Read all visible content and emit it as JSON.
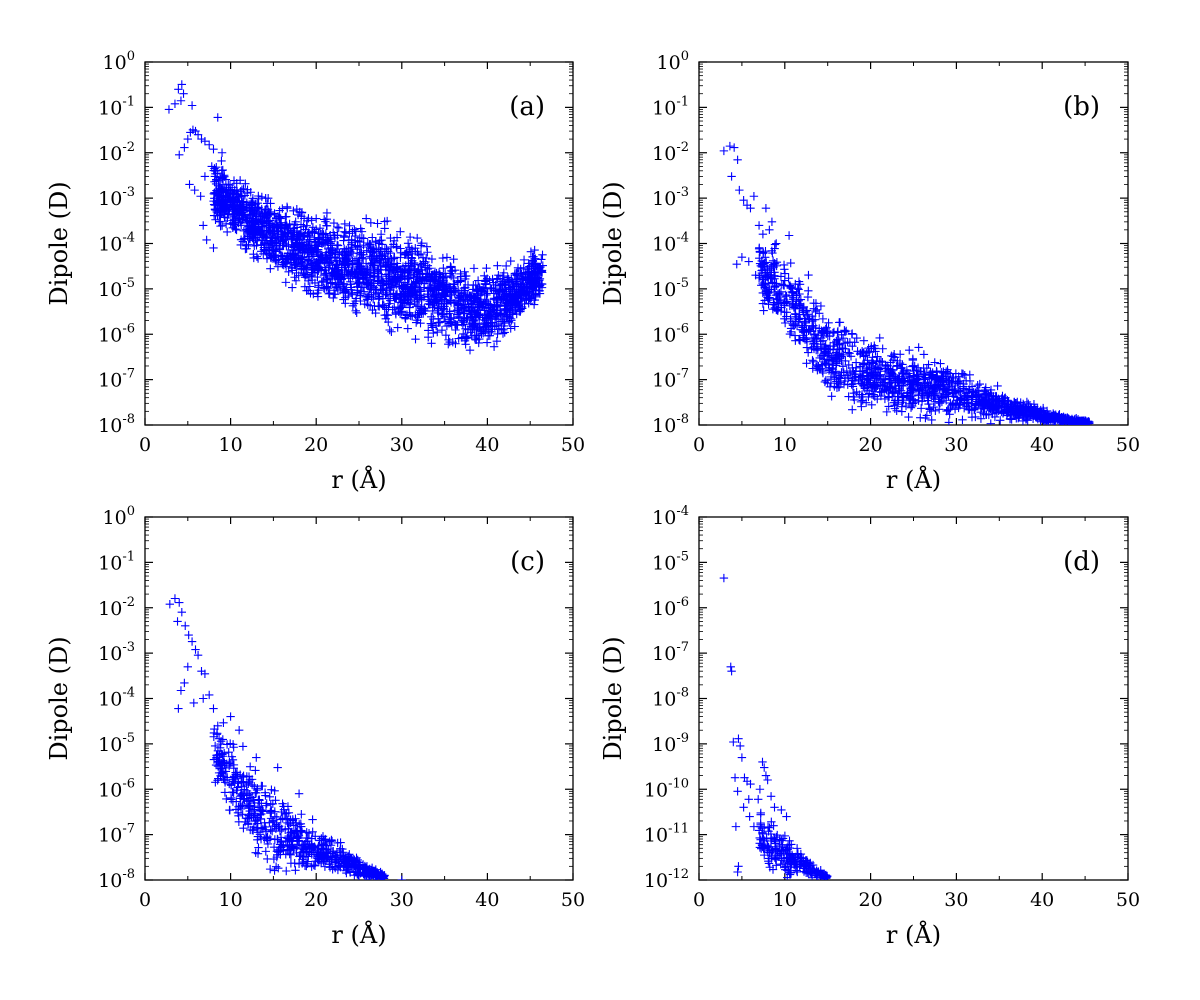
{
  "figure": {
    "background": "#ffffff",
    "marker_color": "#0000ff",
    "marker": "plus"
  },
  "chart_data": [
    {
      "type": "scatter",
      "panel_label": "(a)",
      "xlabel": "r (Å)",
      "ylabel": "Dipole (D)",
      "xlim": [
        0,
        50
      ],
      "ylim_exponent": [
        -8,
        0
      ],
      "yscale": "log",
      "xticks": [
        "0",
        "10",
        "20",
        "30",
        "40",
        "50"
      ],
      "yticks": [
        {
          "base": "10",
          "exp": "-8"
        },
        {
          "base": "10",
          "exp": "-7"
        },
        {
          "base": "10",
          "exp": "-6"
        },
        {
          "base": "10",
          "exp": "-5"
        },
        {
          "base": "10",
          "exp": "-4"
        },
        {
          "base": "10",
          "exp": "-3"
        },
        {
          "base": "10",
          "exp": "-2"
        },
        {
          "base": "10",
          "exp": "-1"
        },
        {
          "base": "10",
          "exp": "0"
        }
      ],
      "grid": false,
      "series": [
        {
          "marker": "+",
          "color": "#0000ff",
          "points": [
            [
              2.8,
              0.09
            ],
            [
              3.5,
              0.12
            ],
            [
              3.9,
              0.25
            ],
            [
              4.3,
              0.32
            ],
            [
              4.5,
              0.2
            ],
            [
              4.2,
              0.14
            ],
            [
              5.5,
              0.11
            ],
            [
              8.5,
              0.06
            ],
            [
              4.0,
              0.009
            ],
            [
              4.6,
              0.013
            ],
            [
              5.0,
              0.02
            ],
            [
              5.3,
              0.028
            ],
            [
              5.6,
              0.032
            ],
            [
              5.9,
              0.03
            ],
            [
              6.2,
              0.025
            ],
            [
              6.6,
              0.02
            ],
            [
              7.0,
              0.018
            ],
            [
              7.5,
              0.015
            ],
            [
              8.0,
              0.012
            ],
            [
              9.0,
              0.01
            ],
            [
              5.2,
              0.002
            ],
            [
              5.8,
              0.0015
            ],
            [
              6.5,
              0.0011
            ],
            [
              7.0,
              0.003
            ],
            [
              7.8,
              0.005
            ],
            [
              8.6,
              0.0009
            ],
            [
              6.8,
              0.00025
            ],
            [
              7.2,
              0.00012
            ],
            [
              8.0,
              8e-05
            ],
            [
              8.8,
              0.0003
            ],
            [
              9.6,
              0.00018
            ],
            [
              10.5,
              0.0006
            ]
          ]
        }
      ],
      "regions": [
        {
          "note": "dense point cloud, log10 lower/upper bounds vs r",
          "r": [
            8,
            10,
            12,
            15,
            18,
            20,
            22,
            25,
            28,
            30,
            33,
            35,
            37,
            39,
            41,
            43,
            45,
            46.5
          ],
          "log_lo": [
            -3.8,
            -4.1,
            -4.4,
            -4.9,
            -5.3,
            -5.5,
            -5.7,
            -5.9,
            -6.1,
            -6.2,
            -6.35,
            -6.5,
            -6.6,
            -6.55,
            -6.4,
            -6.1,
            -5.7,
            -5.3
          ],
          "log_hi": [
            -1.8,
            -2.2,
            -2.5,
            -2.8,
            -3.0,
            -3.1,
            -3.2,
            -3.25,
            -3.3,
            -3.45,
            -3.7,
            -3.95,
            -4.2,
            -4.3,
            -4.3,
            -4.2,
            -4.0,
            -4.0
          ],
          "count": 2400
        }
      ]
    },
    {
      "type": "scatter",
      "panel_label": "(b)",
      "xlabel": "r (Å)",
      "ylabel": "Dipole (D)",
      "xlim": [
        0,
        50
      ],
      "ylim_exponent": [
        -8,
        0
      ],
      "yscale": "log",
      "xticks": [
        "0",
        "10",
        "20",
        "30",
        "40",
        "50"
      ],
      "yticks": [
        {
          "base": "10",
          "exp": "-8"
        },
        {
          "base": "10",
          "exp": "-7"
        },
        {
          "base": "10",
          "exp": "-6"
        },
        {
          "base": "10",
          "exp": "-5"
        },
        {
          "base": "10",
          "exp": "-4"
        },
        {
          "base": "10",
          "exp": "-3"
        },
        {
          "base": "10",
          "exp": "-2"
        },
        {
          "base": "10",
          "exp": "-1"
        },
        {
          "base": "10",
          "exp": "0"
        }
      ],
      "grid": false,
      "series": [
        {
          "marker": "+",
          "color": "#0000ff",
          "points": [
            [
              2.9,
              0.011
            ],
            [
              3.6,
              0.014
            ],
            [
              4.1,
              0.013
            ],
            [
              4.5,
              0.007
            ],
            [
              3.8,
              0.003
            ],
            [
              4.7,
              0.0015
            ],
            [
              5.2,
              0.0009
            ],
            [
              5.6,
              0.0007
            ],
            [
              6.0,
              0.0006
            ],
            [
              6.4,
              0.0011
            ],
            [
              7.0,
              0.00025
            ],
            [
              7.8,
              0.0006
            ],
            [
              8.5,
              0.0003
            ],
            [
              9.0,
              0.0001
            ],
            [
              5.0,
              5e-05
            ],
            [
              4.4,
              3.5e-05
            ],
            [
              5.8,
              4e-05
            ],
            [
              6.6,
              2e-05
            ],
            [
              8.2,
              0.0002
            ],
            [
              10.5,
              0.00015
            ]
          ]
        }
      ],
      "regions": [
        {
          "note": "dense point cloud, log10 lower/upper bounds vs r",
          "r": [
            7,
            9,
            11,
            13,
            15,
            18,
            20,
            23,
            26,
            30,
            34,
            38,
            42,
            45.5
          ],
          "log_lo": [
            -5.5,
            -6.0,
            -6.6,
            -7.2,
            -7.7,
            -8.0,
            -8.0,
            -8.0,
            -8.0,
            -8.0,
            -8.0,
            -8.0,
            -8.0,
            -8.0
          ],
          "log_hi": [
            -3.6,
            -3.9,
            -4.3,
            -4.7,
            -5.2,
            -5.6,
            -5.8,
            -6.0,
            -6.3,
            -6.6,
            -7.0,
            -7.4,
            -7.75,
            -7.9
          ],
          "count": 1500
        }
      ]
    },
    {
      "type": "scatter",
      "panel_label": "(c)",
      "xlabel": "r (Å)",
      "ylabel": "Dipole (D)",
      "xlim": [
        0,
        50
      ],
      "ylim_exponent": [
        -8,
        0
      ],
      "yscale": "log",
      "xticks": [
        "0",
        "10",
        "20",
        "30",
        "40",
        "50"
      ],
      "yticks": [
        {
          "base": "10",
          "exp": "-8"
        },
        {
          "base": "10",
          "exp": "-7"
        },
        {
          "base": "10",
          "exp": "-6"
        },
        {
          "base": "10",
          "exp": "-5"
        },
        {
          "base": "10",
          "exp": "-4"
        },
        {
          "base": "10",
          "exp": "-3"
        },
        {
          "base": "10",
          "exp": "-2"
        },
        {
          "base": "10",
          "exp": "-1"
        },
        {
          "base": "10",
          "exp": "0"
        }
      ],
      "grid": false,
      "series": [
        {
          "marker": "+",
          "color": "#0000ff",
          "points": [
            [
              2.9,
              0.012
            ],
            [
              3.5,
              0.016
            ],
            [
              4.0,
              0.013
            ],
            [
              4.3,
              0.008
            ],
            [
              3.8,
              0.005
            ],
            [
              4.7,
              0.004
            ],
            [
              5.1,
              0.0025
            ],
            [
              5.5,
              0.0018
            ],
            [
              5.9,
              0.0012
            ],
            [
              6.2,
              0.0009
            ],
            [
              6.6,
              0.0004
            ],
            [
              7.0,
              0.00035
            ],
            [
              5.0,
              0.0005
            ],
            [
              4.6,
              0.00022
            ],
            [
              4.2,
              0.00015
            ],
            [
              3.9,
              6e-05
            ],
            [
              5.7,
              8e-05
            ],
            [
              6.8,
              0.0001
            ],
            [
              7.5,
              0.00012
            ],
            [
              8.0,
              6e-05
            ],
            [
              8.5,
              2.5e-05
            ],
            [
              10.0,
              4e-05
            ],
            [
              11.0,
              2e-05
            ],
            [
              13.0,
              5e-06
            ],
            [
              15.5,
              3e-06
            ],
            [
              18.0,
              8e-07
            ],
            [
              30.0,
              1e-08
            ],
            [
              27.0,
              1.2e-08
            ]
          ]
        }
      ],
      "regions": [
        {
          "note": "dense point cloud, log10 lower/upper bounds vs r",
          "r": [
            8,
            10,
            12,
            14,
            16,
            18,
            20,
            22,
            24,
            26,
            28
          ],
          "log_lo": [
            -6.0,
            -6.8,
            -7.5,
            -8.0,
            -8.0,
            -8.0,
            -8.0,
            -8.0,
            -8.0,
            -8.0,
            -8.0
          ],
          "log_hi": [
            -4.2,
            -4.6,
            -5.0,
            -5.5,
            -5.9,
            -6.3,
            -6.6,
            -7.0,
            -7.3,
            -7.6,
            -7.85
          ],
          "count": 700
        }
      ]
    },
    {
      "type": "scatter",
      "panel_label": "(d)",
      "xlabel": "r (Å)",
      "ylabel": "Dipole (D)",
      "xlim": [
        0,
        50
      ],
      "ylim_exponent": [
        -12,
        -4
      ],
      "yscale": "log",
      "xticks": [
        "0",
        "10",
        "20",
        "30",
        "40",
        "50"
      ],
      "yticks": [
        {
          "base": "10",
          "exp": "-12"
        },
        {
          "base": "10",
          "exp": "-11"
        },
        {
          "base": "10",
          "exp": "-10"
        },
        {
          "base": "10",
          "exp": "-9"
        },
        {
          "base": "10",
          "exp": "-8"
        },
        {
          "base": "10",
          "exp": "-7"
        },
        {
          "base": "10",
          "exp": "-6"
        },
        {
          "base": "10",
          "exp": "-5"
        },
        {
          "base": "10",
          "exp": "-4"
        }
      ],
      "grid": false,
      "series": [
        {
          "marker": "+",
          "color": "#0000ff",
          "points": [
            [
              2.9,
              4.5e-06
            ],
            [
              3.7,
              5e-08
            ],
            [
              3.8,
              4e-08
            ],
            [
              4.0,
              1.1e-09
            ],
            [
              4.6,
              1.3e-09
            ],
            [
              4.8,
              9e-10
            ],
            [
              5.0,
              5e-10
            ],
            [
              4.2,
              1.8e-10
            ],
            [
              4.5,
              9e-11
            ],
            [
              4.3,
              1.5e-11
            ],
            [
              4.6,
              2e-12
            ],
            [
              4.5,
              1.5e-12
            ],
            [
              5.3,
              1.8e-10
            ],
            [
              5.6,
              1.5e-10
            ],
            [
              6.0,
              1.3e-10
            ],
            [
              5.8,
              6e-11
            ],
            [
              5.2,
              4e-11
            ],
            [
              5.9,
              2.5e-11
            ],
            [
              6.4,
              1.5e-11
            ],
            [
              7.4,
              4e-10
            ],
            [
              7.6,
              3e-10
            ],
            [
              7.8,
              2e-10
            ],
            [
              8.0,
              1.6e-10
            ],
            [
              7.1,
              1e-10
            ],
            [
              6.9,
              6e-11
            ],
            [
              8.4,
              7e-11
            ],
            [
              8.8,
              4e-11
            ],
            [
              7.2,
              3e-11
            ],
            [
              9.6,
              3.5e-11
            ],
            [
              10.2,
              2.5e-11
            ]
          ]
        }
      ],
      "regions": [
        {
          "note": "dense point cloud, log10 lower/upper bounds vs r",
          "r": [
            7,
            8,
            9,
            10,
            11,
            12,
            13,
            14,
            15
          ],
          "log_lo": [
            -11.6,
            -12.0,
            -12.0,
            -12.0,
            -12.0,
            -12.0,
            -12.0,
            -12.0,
            -12.0
          ],
          "log_hi": [
            -10.3,
            -10.5,
            -10.7,
            -10.9,
            -11.1,
            -11.3,
            -11.5,
            -11.7,
            -11.9
          ],
          "count": 220
        }
      ]
    }
  ]
}
